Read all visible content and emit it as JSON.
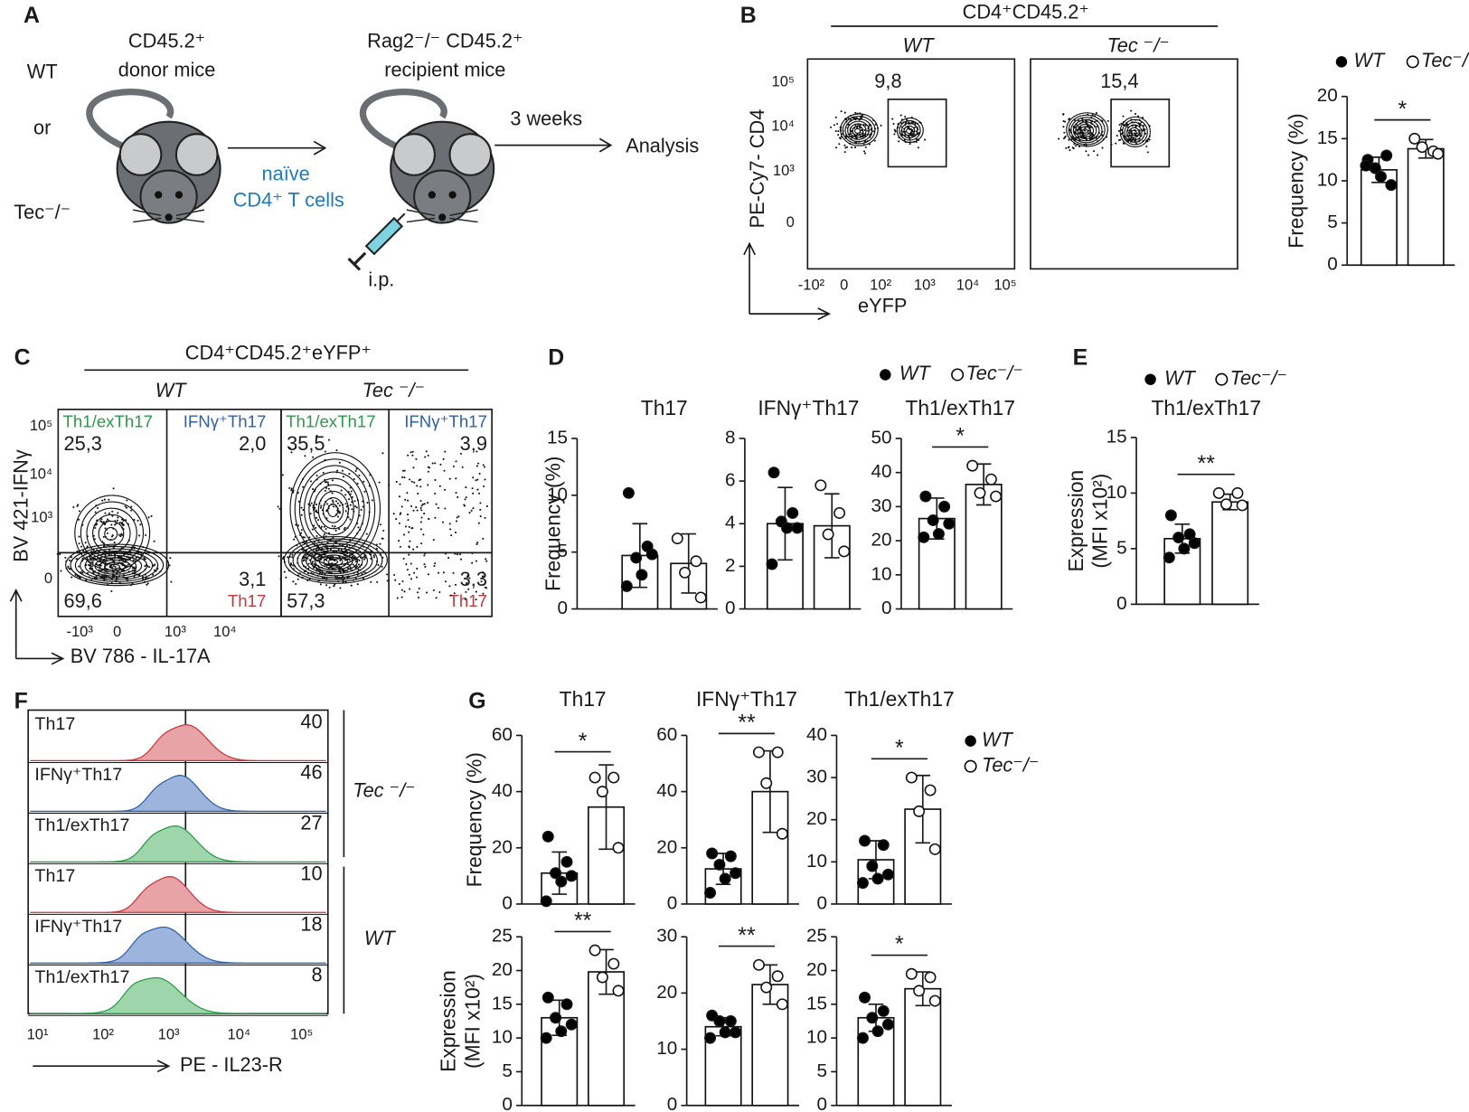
{
  "panel_labels": [
    "A",
    "B",
    "C",
    "D",
    "E",
    "F",
    "G"
  ],
  "panel_a": {
    "groups": [
      "WT",
      "or",
      "Tec⁻/⁻"
    ],
    "donor": [
      "CD45.2⁺",
      "donor mice"
    ],
    "transfer": [
      "naïve",
      "CD4⁺ T cells"
    ],
    "recipient": [
      "Rag2⁻/⁻ CD45.2⁺",
      "recipient mice"
    ],
    "route": "i.p.",
    "time": "3 weeks",
    "readout": "Analysis"
  },
  "panel_b": {
    "header": "CD4⁺CD45.2⁺",
    "plots": [
      {
        "title": "WT",
        "gate": "9,8"
      },
      {
        "title": "Tec ⁻/⁻",
        "gate": "15,4"
      }
    ],
    "y_label": "PE-Cy7- CD4",
    "x_label": "eYFP",
    "y_ticks": [
      "10⁵",
      "10⁴",
      "10³",
      "0"
    ],
    "x_ticks": [
      "-10²",
      "0",
      "10²",
      "10³",
      "10⁴",
      "10⁵"
    ],
    "legend": [
      "WT",
      "Tec⁻/⁻"
    ]
  },
  "panel_c": {
    "header": "CD4⁺CD45.2⁺eYFP⁺",
    "plots": [
      {
        "title": "WT",
        "quadrants": [
          "25,3",
          "2,0",
          "3,1",
          "69,6"
        ]
      },
      {
        "title": "Tec ⁻/⁻",
        "quadrants": [
          "35,5",
          "3,9",
          "3,3",
          "57,3"
        ]
      }
    ],
    "quadrant_names": [
      "Th1/exTh17",
      "IFNγ⁺Th17",
      "Th17"
    ],
    "y_label": "BV 421-IFNγ",
    "x_label": "BV 786 - IL-17A",
    "y_ticks": [
      "10⁵",
      "10⁴",
      "10³",
      "0"
    ],
    "x_ticks": [
      "-10³",
      "0",
      "10³",
      "10⁴"
    ]
  },
  "panel_d": {
    "legend": [
      "WT",
      "Tec⁻/⁻"
    ]
  },
  "panel_e": {
    "legend": [
      "WT",
      "Tec⁻/⁻"
    ]
  },
  "panel_f": {
    "tracks": [
      {
        "name": "Th17",
        "value": 40
      },
      {
        "name": "IFNγ⁺Th17",
        "value": 46
      },
      {
        "name": "Th1/exTh17",
        "value": 27
      },
      {
        "name": "Th17",
        "value": 10
      },
      {
        "name": "IFNγ⁺Th17",
        "value": 18
      },
      {
        "name": "Th1/exTh17",
        "value": 8
      }
    ],
    "groups": [
      "Tec ⁻/⁻",
      "WT"
    ],
    "x_ticks": [
      "10¹",
      "10²",
      "10³",
      "10⁴",
      "10⁵"
    ],
    "x_label": "PE - IL23-R"
  },
  "panel_g": {
    "legend": [
      "WT",
      "Tec⁻/⁻"
    ]
  },
  "chart_data": [
    {
      "type": "bar",
      "ylabel": "Frequency (%)",
      "ylim": [
        0,
        20
      ],
      "yticks": [
        0,
        5,
        10,
        15,
        20
      ],
      "significance": "*",
      "series": [
        {
          "color": "#000000",
          "values": [
            11.3
          ],
          "error": [
            1.5
          ],
          "points": [
            12.5,
            13,
            11.5,
            9.5,
            10.5,
            11.8
          ]
        },
        {
          "color": "#ffffff",
          "values": [
            13.8
          ],
          "error": [
            1.1
          ],
          "points": [
            15,
            13.5,
            14,
            13.2
          ]
        }
      ]
    },
    {
      "type": "bar",
      "title": "Th17",
      "title_color": "#c8363d",
      "ylabel": "Frequency (%)",
      "ylim": [
        0,
        15
      ],
      "yticks": [
        0,
        5,
        10,
        15
      ],
      "series": [
        {
          "color": "#000000",
          "values": [
            4.7
          ],
          "error": [
            2.8
          ],
          "points": [
            10.2,
            5.5,
            4.5,
            4.8,
            3,
            2
          ]
        },
        {
          "color": "#ffffff",
          "values": [
            4
          ],
          "error": [
            2.6
          ],
          "points": [
            6.2,
            4.2,
            3.2,
            1
          ]
        }
      ]
    },
    {
      "type": "bar",
      "title": "IFNγ⁺Th17",
      "title_color": "#2e5fa8",
      "ylim": [
        0,
        8
      ],
      "yticks": [
        0,
        2,
        4,
        6,
        8
      ],
      "series": [
        {
          "color": "#000000",
          "values": [
            4
          ],
          "error": [
            1.7
          ],
          "points": [
            6.4,
            4.5,
            4.1,
            3.8,
            3.8,
            2.1
          ]
        },
        {
          "color": "#ffffff",
          "values": [
            3.9
          ],
          "error": [
            1.5
          ],
          "points": [
            5.8,
            4.5,
            3.5,
            2.7
          ]
        }
      ]
    },
    {
      "type": "bar",
      "title": "Th1/exTh17",
      "title_color": "#2a9a48",
      "ylim": [
        0,
        50
      ],
      "yticks": [
        0,
        10,
        20,
        30,
        40,
        50
      ],
      "significance": "*",
      "series": [
        {
          "color": "#000000",
          "values": [
            26.5
          ],
          "error": [
            6
          ],
          "points": [
            33,
            30,
            26,
            25,
            22,
            21
          ]
        },
        {
          "color": "#ffffff",
          "values": [
            36.5
          ],
          "error": [
            6
          ],
          "points": [
            42,
            38,
            34,
            33
          ]
        }
      ]
    },
    {
      "type": "bar",
      "title": "Th1/exTh17",
      "title_color": "#2a9a48",
      "ylabel": [
        "Expression",
        "(MFI x10²)"
      ],
      "ylim": [
        0,
        15
      ],
      "yticks": [
        0,
        5,
        10,
        15
      ],
      "significance": "**",
      "series": [
        {
          "color": "#000000",
          "values": [
            5.9
          ],
          "error": [
            1.3
          ],
          "points": [
            8,
            6.3,
            6,
            5.5,
            5,
            4.2
          ]
        },
        {
          "color": "#ffffff",
          "values": [
            9.2
          ],
          "error": [
            0.7
          ],
          "points": [
            10,
            10,
            9,
            8.9
          ]
        }
      ]
    },
    {
      "type": "bar",
      "title": "Th17",
      "title_color": "#c8363d",
      "ylabel": "Frequency (%)",
      "ylim": [
        0,
        60
      ],
      "yticks": [
        0,
        20,
        40,
        60
      ],
      "significance": "*",
      "series": [
        {
          "color": "#000000",
          "values": [
            11
          ],
          "error": [
            7.5
          ],
          "points": [
            24,
            15,
            11,
            10,
            8,
            1
          ]
        },
        {
          "color": "#ffffff",
          "values": [
            34.5
          ],
          "error": [
            15
          ],
          "points": [
            45,
            45,
            40,
            20
          ]
        }
      ]
    },
    {
      "type": "bar",
      "title": "IFNγ⁺Th17",
      "title_color": "#2e5fa8",
      "ylim": [
        0,
        60
      ],
      "yticks": [
        0,
        20,
        40,
        60
      ],
      "significance": "**",
      "series": [
        {
          "color": "#000000",
          "values": [
            12.5
          ],
          "error": [
            5.5
          ],
          "points": [
            18,
            17,
            14,
            11,
            9,
            4
          ]
        },
        {
          "color": "#ffffff",
          "values": [
            40
          ],
          "error": [
            14.5
          ],
          "points": [
            54,
            54,
            43,
            25
          ]
        }
      ]
    },
    {
      "type": "bar",
      "title": "Th1/exTh17",
      "title_color": "#2a9a48",
      "ylim": [
        0,
        40
      ],
      "yticks": [
        0,
        10,
        20,
        30,
        40
      ],
      "significance": "*",
      "series": [
        {
          "color": "#000000",
          "values": [
            10.5
          ],
          "error": [
            4.5
          ],
          "points": [
            15,
            14,
            9,
            7,
            6,
            5
          ]
        },
        {
          "color": "#ffffff",
          "values": [
            22.5
          ],
          "error": [
            8
          ],
          "points": [
            30,
            27,
            22,
            13
          ]
        }
      ]
    },
    {
      "type": "bar",
      "ylabel": [
        "Expression",
        "(MFI x10²)"
      ],
      "ylim": [
        0,
        25
      ],
      "yticks": [
        0,
        5,
        10,
        15,
        20,
        25
      ],
      "significance": "**",
      "series": [
        {
          "color": "#000000",
          "values": [
            13
          ],
          "error": [
            2.6
          ],
          "points": [
            16,
            15,
            13,
            12,
            11,
            10
          ]
        },
        {
          "color": "#ffffff",
          "values": [
            19.8
          ],
          "error": [
            3.3
          ],
          "points": [
            23,
            21,
            19,
            17
          ]
        }
      ]
    },
    {
      "type": "bar",
      "ylim": [
        0,
        30
      ],
      "yticks": [
        0,
        10,
        20,
        30
      ],
      "significance": "**",
      "series": [
        {
          "color": "#000000",
          "values": [
            14
          ],
          "error": [
            1.6
          ],
          "points": [
            16,
            15,
            15,
            13,
            13,
            12
          ]
        },
        {
          "color": "#ffffff",
          "values": [
            21.5
          ],
          "error": [
            3.5
          ],
          "points": [
            25,
            23,
            21,
            18
          ]
        }
      ]
    },
    {
      "type": "bar",
      "ylim": [
        0,
        25
      ],
      "yticks": [
        0,
        5,
        10,
        15,
        20,
        25
      ],
      "significance": "*",
      "series": [
        {
          "color": "#000000",
          "values": [
            13
          ],
          "error": [
            2
          ],
          "points": [
            16,
            14,
            13,
            12,
            11,
            10
          ]
        },
        {
          "color": "#ffffff",
          "values": [
            17.3
          ],
          "error": [
            2.5
          ],
          "points": [
            19.5,
            19,
            17,
            15.5
          ]
        }
      ]
    }
  ]
}
